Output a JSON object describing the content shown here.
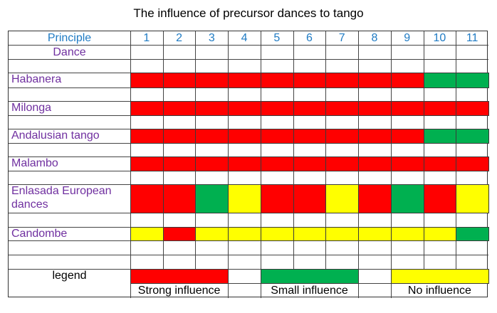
{
  "title": "The influence of precursor dances to tango",
  "header": {
    "principle_label": "Principle",
    "dance_label": "Dance"
  },
  "principles": [
    "1",
    "2",
    "3",
    "4",
    "5",
    "6",
    "7",
    "8",
    "9",
    "10",
    "11"
  ],
  "colors": {
    "R": "#ff0000",
    "G": "#00b050",
    "Y": "#ffff00",
    "header_text": "#1f7bc4",
    "dance_text": "#7030a0"
  },
  "legend": {
    "label": "legend",
    "items": [
      {
        "label": "Strong  influence",
        "color": "#ff0000"
      },
      {
        "label": "Small influence",
        "color": "#00b050"
      },
      {
        "label": "No influence",
        "color": "#ffff00"
      }
    ]
  },
  "chart_data": {
    "type": "table",
    "title": "The influence of precursor dances to tango",
    "columns": [
      "1",
      "2",
      "3",
      "4",
      "5",
      "6",
      "7",
      "8",
      "9",
      "10",
      "11"
    ],
    "column_header": "Principle",
    "row_header": "Dance",
    "value_legend": {
      "R": "Strong influence",
      "G": "Small influence",
      "Y": "No influence"
    },
    "rows": [
      {
        "dance": "Habanera",
        "values": [
          "R",
          "R",
          "R",
          "R",
          "R",
          "R",
          "R",
          "R",
          "R",
          "G",
          "G"
        ]
      },
      {
        "dance": "Milonga",
        "values": [
          "R",
          "R",
          "R",
          "R",
          "R",
          "R",
          "R",
          "R",
          "R",
          "R",
          "R"
        ]
      },
      {
        "dance": "Andalusian tango",
        "values": [
          "R",
          "R",
          "R",
          "R",
          "R",
          "R",
          "R",
          "R",
          "R",
          "G",
          "G"
        ]
      },
      {
        "dance": "Malambo",
        "values": [
          "R",
          "R",
          "R",
          "R",
          "R",
          "R",
          "R",
          "R",
          "R",
          "R",
          "R"
        ]
      },
      {
        "dance": "Enlasada European dances",
        "values": [
          "R",
          "R",
          "G",
          "Y",
          "R",
          "R",
          "Y",
          "R",
          "G",
          "R",
          "Y"
        ]
      },
      {
        "dance": "Candombe",
        "values": [
          "Y",
          "R",
          "Y",
          "Y",
          "Y",
          "Y",
          "Y",
          "Y",
          "Y",
          "Y",
          "G"
        ]
      }
    ]
  }
}
